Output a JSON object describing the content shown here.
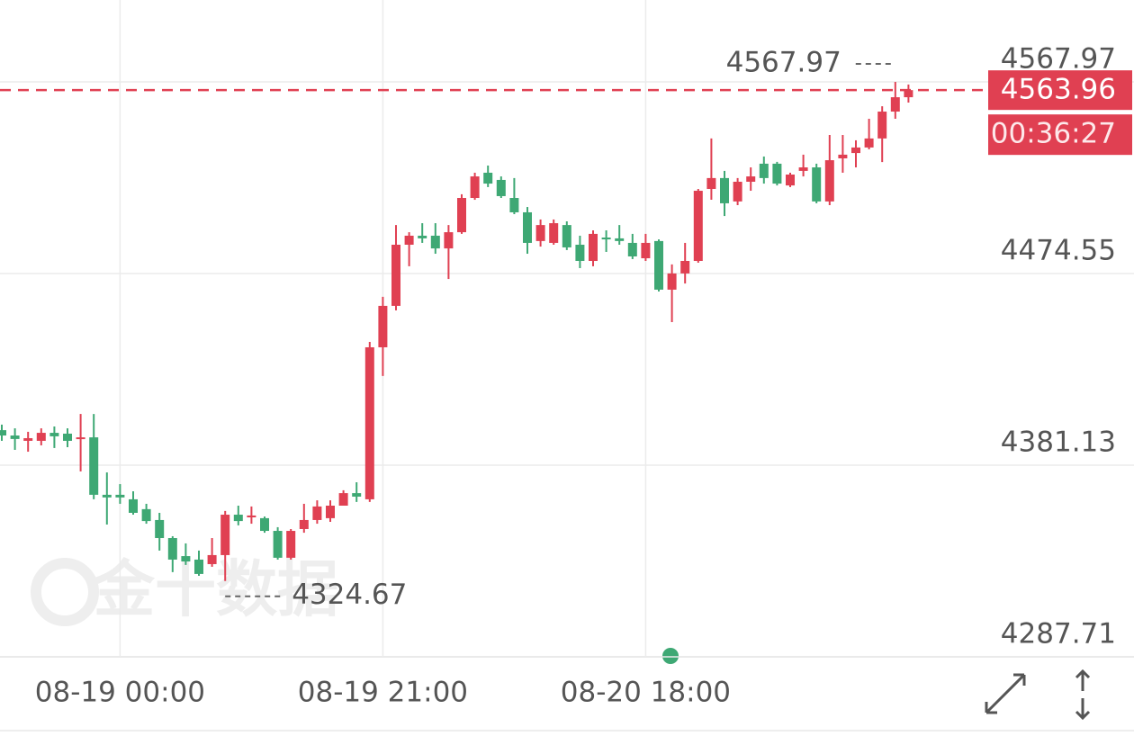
{
  "chart_data": {
    "type": "candlestick",
    "categories": [
      null,
      null,
      null,
      null,
      null,
      null,
      null,
      null,
      null,
      "08-19 00:00",
      null,
      null,
      null,
      null,
      null,
      null,
      null,
      null,
      null,
      null,
      null,
      null,
      null,
      null,
      null,
      null,
      null,
      null,
      null,
      "08-19 21:00",
      null,
      null,
      null,
      null,
      null,
      null,
      null,
      null,
      null,
      null,
      null,
      null,
      null,
      null,
      null,
      null,
      null,
      null,
      null,
      "08-20 18:00",
      null,
      null,
      null,
      null,
      null,
      null,
      null,
      null,
      null,
      null,
      null,
      null,
      null,
      null,
      null,
      null,
      null,
      null,
      null,
      null
    ],
    "open": [
      4398.2,
      4395.6,
      4393.0,
      4393.0,
      4396.9,
      4396.5,
      4394.3,
      4394.7,
      4366.7,
      4366.7,
      4364.5,
      4359.7,
      4354.4,
      4345.6,
      4336.8,
      4335.1,
      4332.9,
      4337.3,
      4357.0,
      4355.7,
      4355.3,
      4349.1,
      4336.0,
      4350.0,
      4354.4,
      4355.3,
      4361.4,
      4367.5,
      4364.5,
      4438.6,
      4458.8,
      4488.6,
      4493.0,
      4493.0,
      4486.8,
      4494.7,
      4511.4,
      4523.7,
      4520.2,
      4511.4,
      4504.4,
      4490.4,
      4489.5,
      4498.2,
      4488.6,
      4480.7,
      4492.1,
      4491.7,
      4489.5,
      4482.0,
      4490.4,
      4466.7,
      4474.6,
      4480.7,
      4515.8,
      4521.1,
      4509.7,
      4519.3,
      4528.1,
      4528.1,
      4517.5,
      4524.6,
      4526.3,
      4509.7,
      4530.7,
      4533.3,
      4536.0,
      4540.4,
      4553.5,
      4560.5
    ],
    "high": [
      4400.9,
      4399.1,
      4397.4,
      4399.1,
      4400.0,
      4399.1,
      4406.1,
      4406.1,
      4377.6,
      4371.9,
      4368.4,
      4362.3,
      4357.9,
      4346.5,
      4343.0,
      4339.5,
      4345.6,
      4358.8,
      4361.4,
      4361.0,
      4356.1,
      4350.9,
      4350.0,
      4362.3,
      4364.0,
      4364.0,
      4368.9,
      4372.8,
      4441.2,
      4463.2,
      4498.2,
      4494.7,
      4499.1,
      4499.1,
      4498.2,
      4513.2,
      4523.7,
      4527.2,
      4521.9,
      4521.1,
      4507.0,
      4500.9,
      4500.9,
      4500.0,
      4493.0,
      4495.6,
      4495.6,
      4498.2,
      4493.9,
      4493.9,
      4491.2,
      4479.0,
      4489.5,
      4515.8,
      4540.4,
      4524.6,
      4521.1,
      4526.3,
      4531.6,
      4529.0,
      4523.7,
      4532.5,
      4528.1,
      4542.1,
      4542.1,
      4539.5,
      4550.0,
      4556.1,
      4567.97,
      4566.7
    ],
    "low": [
      4393.0,
      4388.6,
      4387.7,
      4390.8,
      4389.5,
      4389.9,
      4378.1,
      4364.5,
      4352.2,
      4362.3,
      4357.0,
      4352.6,
      4339.5,
      4329.0,
      4332.5,
      4327.2,
      4331.6,
      4324.67,
      4351.8,
      4352.6,
      4348.2,
      4335.1,
      4335.1,
      4348.2,
      4352.6,
      4353.5,
      4361.4,
      4363.2,
      4363.2,
      4424.6,
      4456.6,
      4478.1,
      4489.5,
      4484.2,
      4471.9,
      4493.9,
      4510.5,
      4516.7,
      4511.4,
      4503.5,
      4484.2,
      4487.7,
      4488.6,
      4486.0,
      4477.2,
      4478.1,
      4485.1,
      4488.6,
      4481.6,
      4480.7,
      4465.8,
      4450.9,
      4469.7,
      4479.8,
      4510.5,
      4502.6,
      4507.9,
      4514.9,
      4518.4,
      4517.5,
      4516.7,
      4521.9,
      4508.8,
      4507.9,
      4523.7,
      4526.3,
      4535.1,
      4528.9,
      4550.0,
      4557.9
    ],
    "close": [
      4395.6,
      4393.9,
      4394.3,
      4396.9,
      4395.2,
      4393.0,
      4394.7,
      4366.7,
      4365.4,
      4365.4,
      4357.9,
      4353.9,
      4345.6,
      4335.1,
      4334.2,
      4328.1,
      4337.3,
      4357.0,
      4353.9,
      4356.6,
      4349.1,
      4336.0,
      4349.1,
      4354.4,
      4361.0,
      4361.4,
      4367.5,
      4365.8,
      4438.6,
      4458.8,
      4488.6,
      4493.0,
      4491.7,
      4486.8,
      4494.7,
      4511.4,
      4521.9,
      4518.4,
      4512.3,
      4504.4,
      4489.5,
      4498.2,
      4499.1,
      4487.3,
      4480.7,
      4493.9,
      4491.2,
      4490.4,
      4482.9,
      4489.5,
      4466.7,
      4474.6,
      4480.7,
      4514.9,
      4521.1,
      4508.8,
      4519.3,
      4521.9,
      4521.1,
      4518.4,
      4522.8,
      4526.3,
      4509.7,
      4529.8,
      4532.5,
      4536.0,
      4540.4,
      4553.5,
      4560.5,
      4563.96
    ],
    "up_color": "#e04052",
    "down_color": "#3ea874",
    "ylim": [
      4287.71,
      4607.9
    ],
    "yticks": [
      4287.71,
      4381.13,
      4474.55,
      4567.97
    ],
    "grid": true,
    "countdown": "00:36:27",
    "watermark": "金十数据"
  }
}
